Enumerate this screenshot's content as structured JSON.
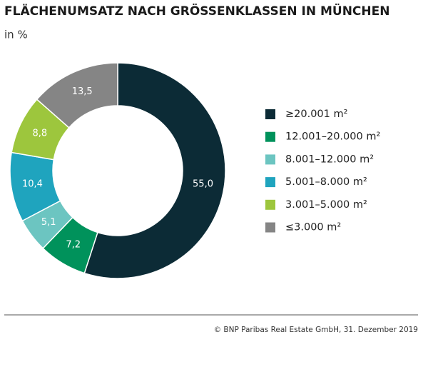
{
  "chart_data": {
    "type": "donut",
    "title": "FLÄCHENUMSATZ NACH GRÖSSENKLASSEN IN MÜNCHEN",
    "subtitle": "in %",
    "categories": [
      "≥20.001 m²",
      "12.001–20.000 m²",
      "8.001–12.000 m²",
      "5.001–8.000 m²",
      "3.001–5.000 m²",
      "≤3.000 m²"
    ],
    "values": [
      55.0,
      7.2,
      5.1,
      10.4,
      8.8,
      13.5
    ],
    "value_labels": [
      "55,0",
      "7,2",
      "5,1",
      "10,4",
      "8,8",
      "13,5"
    ],
    "colors": [
      "#0c2b36",
      "#00925b",
      "#6cc5c1",
      "#1fa4be",
      "#9dc63d",
      "#858585"
    ],
    "legend": "right",
    "source": "© BNP Paribas Real Estate GmbH, 31. Dezember 2019"
  }
}
